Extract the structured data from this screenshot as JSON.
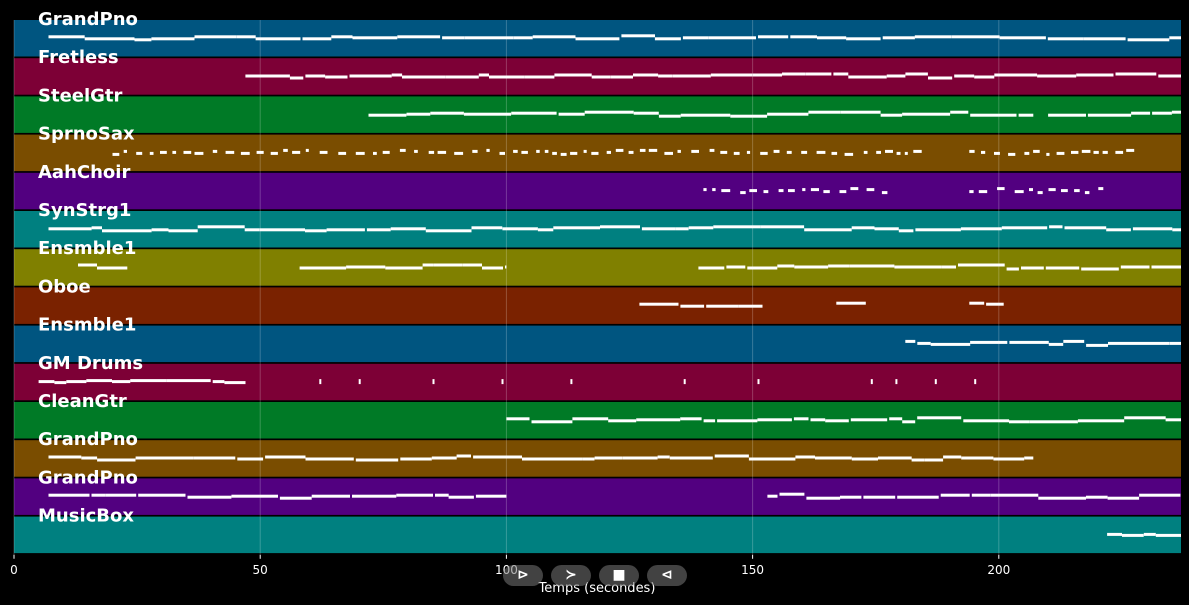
{
  "chart_data": {
    "type": "piano-roll",
    "xlabel": "Temps (secondes)",
    "xlim": [
      0,
      237
    ],
    "xticks": [
      0,
      50,
      100,
      150,
      200
    ],
    "grid": true,
    "tracks": [
      {
        "name": "GrandPno",
        "color": "#005580",
        "segments": [
          [
            7,
            237
          ]
        ]
      },
      {
        "name": "Fretless",
        "color": "#7d0036",
        "segments": [
          [
            47,
            237
          ]
        ]
      },
      {
        "name": "SteelGtr",
        "color": "#007a26",
        "segments": [
          [
            72,
            207
          ],
          [
            210,
            237
          ]
        ]
      },
      {
        "name": "SprnoSax",
        "color": "#7a4d00",
        "segments": [
          [
            20,
            185
          ],
          [
            194,
            228
          ]
        ]
      },
      {
        "name": "AahChoir",
        "color": "#520080",
        "segments": [
          [
            140,
            178
          ],
          [
            194,
            222
          ]
        ]
      },
      {
        "name": "SynStrg1",
        "color": "#008080",
        "segments": [
          [
            7,
            237
          ]
        ]
      },
      {
        "name": "Ensmble1",
        "color": "#808000",
        "segments": [
          [
            13,
            23
          ],
          [
            58,
            100
          ],
          [
            139,
            237
          ]
        ]
      },
      {
        "name": "Oboe",
        "color": "#7a2200",
        "segments": [
          [
            127,
            152
          ],
          [
            167,
            173
          ],
          [
            194,
            201
          ]
        ]
      },
      {
        "name": "Ensmble1",
        "color": "#005580",
        "segments": [
          [
            181,
            237
          ]
        ]
      },
      {
        "name": "GM Drums",
        "color": "#7d0036",
        "segments": [
          [
            5,
            47
          ]
        ],
        "hits": [
          62,
          70,
          85,
          99,
          113,
          136,
          151,
          174,
          179,
          187,
          195
        ]
      },
      {
        "name": "CleanGtr",
        "color": "#007a26",
        "segments": [
          [
            100,
            237
          ]
        ]
      },
      {
        "name": "GrandPno",
        "color": "#7a4d00",
        "segments": [
          [
            7,
            207
          ]
        ]
      },
      {
        "name": "GrandPno",
        "color": "#520080",
        "segments": [
          [
            7,
            100
          ],
          [
            153,
            237
          ]
        ]
      },
      {
        "name": "MusicBox",
        "color": "#008080",
        "segments": [
          [
            222,
            237
          ]
        ]
      }
    ]
  },
  "controls": {
    "play_label": "⊳",
    "forward_label": "≻",
    "stop_label": "■",
    "back_label": "⊲"
  }
}
